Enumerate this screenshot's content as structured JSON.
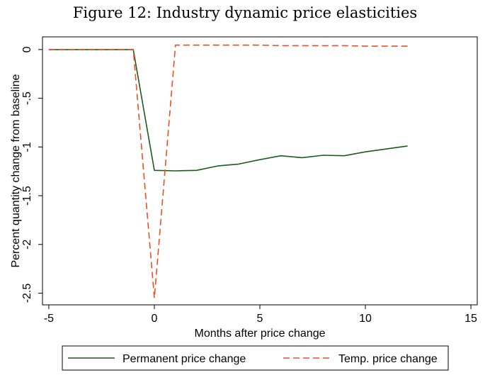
{
  "figure_title": "Figure 12: Industry dynamic price elasticities",
  "chart_data": {
    "type": "line",
    "title": "Figure 12: Industry dynamic price elasticities",
    "xlabel": "Months after price change",
    "ylabel": "Percent quantity change from baseline",
    "xlim": [
      -5.3,
      15.3
    ],
    "ylim": [
      -2.62,
      0.13
    ],
    "x_ticks": [
      -5,
      0,
      5,
      10,
      15
    ],
    "y_ticks": [
      0,
      -0.5,
      -1,
      -1.5,
      -2,
      -2.5
    ],
    "x_tick_labels": [
      "-5",
      "0",
      "5",
      "10",
      "15"
    ],
    "y_tick_labels": [
      "0",
      "-.5",
      "-1",
      "-1.5",
      "-2",
      "-2.5"
    ],
    "grid": false,
    "legend_position": "bottom",
    "series": [
      {
        "name": "Permanent price change",
        "color": "#1a5c1a",
        "style": "solid",
        "x": [
          -5,
          -4,
          -3,
          -2,
          -1,
          0,
          1,
          2,
          3,
          4,
          5,
          6,
          7,
          8,
          9,
          10,
          11,
          12
        ],
        "y": [
          0,
          0,
          0,
          0,
          0,
          -1.24,
          -1.245,
          -1.24,
          -1.195,
          -1.175,
          -1.13,
          -1.09,
          -1.11,
          -1.085,
          -1.09,
          -1.05,
          -1.02,
          -0.99
        ]
      },
      {
        "name": "Temp. price change",
        "color": "#f04e23",
        "style": "dashed",
        "x": [
          -5,
          -4,
          -3,
          -2,
          -1,
          0,
          1,
          2,
          3,
          4,
          5,
          6,
          7,
          8,
          9,
          10,
          11,
          12
        ],
        "y": [
          0,
          0,
          0,
          0,
          0,
          -2.55,
          0.045,
          0.045,
          0.045,
          0.045,
          0.045,
          0.04,
          0.04,
          0.04,
          0.04,
          0.035,
          0.035,
          0.035
        ]
      }
    ]
  }
}
